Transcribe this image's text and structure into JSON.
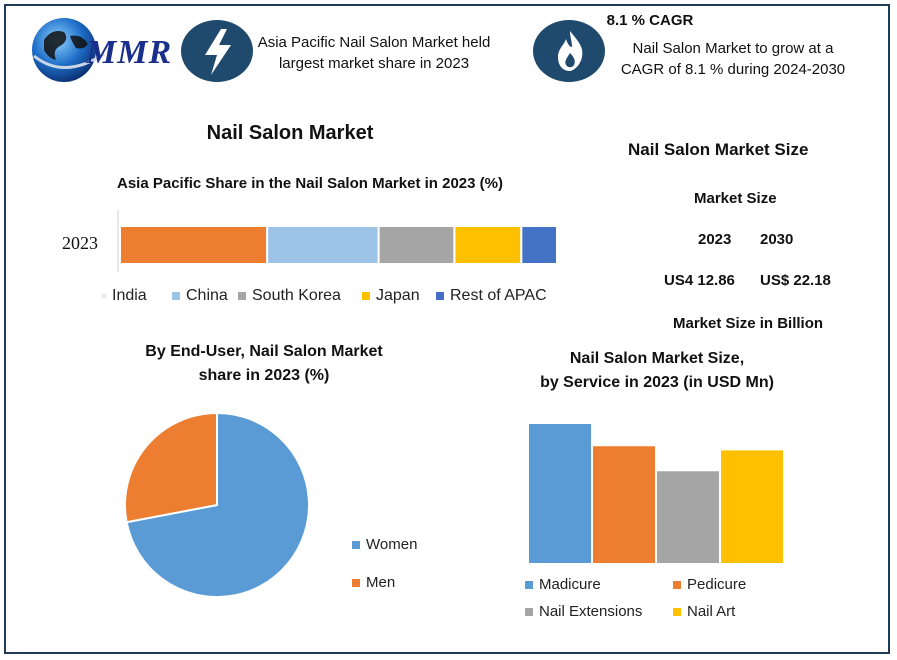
{
  "header": {
    "logo_text": "MMR",
    "box1_text_line1": "Asia Pacific Nail Salon Market held",
    "box1_text_line2": "largest market share in 2023",
    "cagr_title": "8.1 % CAGR",
    "box2_text_line1": "Nail Salon Market to grow at a",
    "box2_text_line2": "CAGR of 8.1 % during 2024-2030"
  },
  "main_title": "Nail Salon Market",
  "size_panel": {
    "title": "Nail Salon Market Size",
    "subtitle": "Market Size",
    "year1": "2023",
    "year2": "2030",
    "value1": "US4 12.86",
    "value2": "US$ 22.18",
    "unit_note": "Market Size in Billion"
  },
  "colors": {
    "india": "#ed7d31",
    "china": "#9dc3e6",
    "south_korea": "#a5a5a5",
    "japan": "#ffc000",
    "rest_apac": "#4472c4",
    "women": "#5b9bd5",
    "men": "#ed7d31",
    "madicure": "#5b9bd5",
    "pedicure": "#ed7d31",
    "nail_extensions": "#a5a5a5",
    "nail_art": "#ffc000",
    "icon_bg": "#1f4a6e"
  },
  "chart_data": [
    {
      "type": "bar",
      "orientation": "horizontal-stacked",
      "title": "Asia Pacific Share in the Nail Salon Market in 2023 (%)",
      "categories": [
        "2023"
      ],
      "series": [
        {
          "name": "India",
          "values": [
            33
          ]
        },
        {
          "name": "China",
          "values": [
            25
          ]
        },
        {
          "name": "South Korea",
          "values": [
            17
          ]
        },
        {
          "name": "Japan",
          "values": [
            15
          ]
        },
        {
          "name": "Rest of APAC",
          "values": [
            8
          ]
        }
      ],
      "xlim": [
        0,
        100
      ],
      "legend": "bottom"
    },
    {
      "type": "pie",
      "title_line1": "By End-User, Nail Salon Market",
      "title_line2": "share in 2023  (%)",
      "labels": [
        "Women",
        "Men"
      ],
      "values": [
        72,
        28
      ],
      "legend": "right"
    },
    {
      "type": "bar",
      "title_line1": "Nail Salon Market Size,",
      "title_line2": "by Service in 2023 (in USD Mn)",
      "categories": [
        "Madicure",
        "Pedicure",
        "Nail Extensions",
        "Nail Art"
      ],
      "values": [
        100,
        84,
        66,
        81
      ],
      "ylim": [
        0,
        100
      ],
      "legend": "bottom"
    }
  ]
}
